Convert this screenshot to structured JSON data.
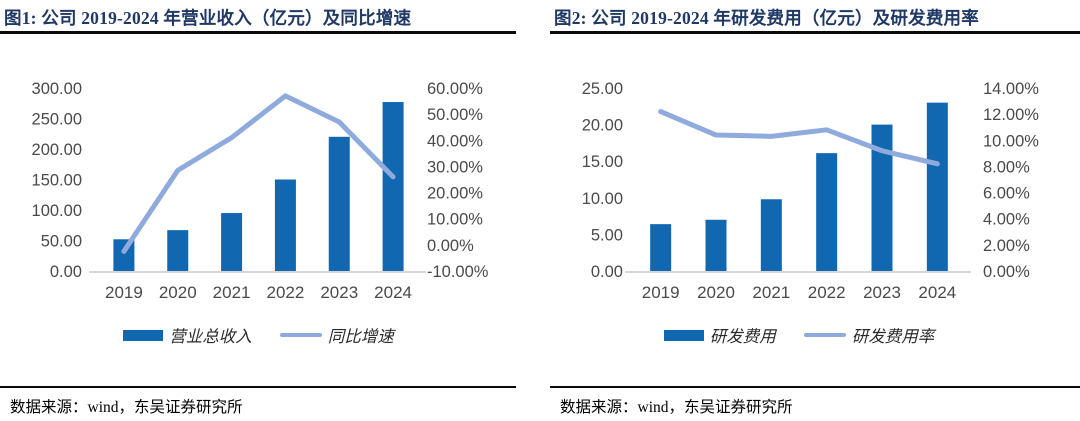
{
  "colors": {
    "bar": "#1168B1",
    "line": "#8FAADC",
    "title": "#1F3864",
    "axis_text": "#4A4A4A",
    "baseline": "#D6D6D6",
    "rule": "#0A0A0A"
  },
  "panels": [
    {
      "title": "图1:  公司 2019-2024 年营业收入（亿元）及同比增速",
      "legend": [
        {
          "type": "bar",
          "label": "营业总收入"
        },
        {
          "type": "line",
          "label": "同比增速"
        }
      ],
      "source": "数据来源：wind，东吴证券研究所"
    },
    {
      "title": "图2:  公司 2019-2024 年研发费用（亿元）及研发费用率",
      "legend": [
        {
          "type": "bar",
          "label": "研发费用"
        },
        {
          "type": "line",
          "label": "研发费用率"
        }
      ],
      "source": "数据来源：wind，东吴证券研究所"
    }
  ],
  "chart_data": [
    {
      "type": "bar",
      "subtype": "bar+line combo",
      "title": "公司 2019-2024 年营业收入（亿元）及同比增速",
      "categories": [
        "2019",
        "2020",
        "2021",
        "2022",
        "2023",
        "2024"
      ],
      "series": [
        {
          "name": "营业总收入",
          "type": "bar",
          "axis": "left",
          "values": [
            52,
            67,
            95,
            150,
            220,
            277
          ]
        },
        {
          "name": "同比增速",
          "type": "line",
          "axis": "right",
          "values": [
            -2.5,
            28.5,
            41.0,
            57.0,
            47.0,
            26.0
          ]
        }
      ],
      "left_axis": {
        "min": 0,
        "max": 300,
        "ticks": [
          "300.00",
          "250.00",
          "200.00",
          "150.00",
          "100.00",
          "50.00",
          "0.00"
        ]
      },
      "right_axis": {
        "min": -10,
        "max": 60,
        "ticks": [
          "60.00%",
          "50.00%",
          "40.00%",
          "30.00%",
          "20.00%",
          "10.00%",
          "0.00%",
          "-10.00%"
        ]
      },
      "grid": false,
      "legend_position": "bottom"
    },
    {
      "type": "bar",
      "subtype": "bar+line combo",
      "title": "公司 2019-2024 年研发费用（亿元）及研发费用率",
      "categories": [
        "2019",
        "2020",
        "2021",
        "2022",
        "2023",
        "2024"
      ],
      "series": [
        {
          "name": "研发费用",
          "type": "bar",
          "axis": "left",
          "values": [
            6.4,
            7.0,
            9.8,
            16.1,
            20.0,
            23.0
          ]
        },
        {
          "name": "研发费用率",
          "type": "line",
          "axis": "right",
          "values": [
            12.2,
            10.4,
            10.3,
            10.8,
            9.2,
            8.2
          ]
        }
      ],
      "left_axis": {
        "min": 0,
        "max": 25,
        "ticks": [
          "25.00",
          "20.00",
          "15.00",
          "10.00",
          "5.00",
          "0.00"
        ]
      },
      "right_axis": {
        "min": 0,
        "max": 14,
        "ticks": [
          "14.00%",
          "12.00%",
          "10.00%",
          "8.00%",
          "6.00%",
          "4.00%",
          "2.00%",
          "0.00%"
        ]
      },
      "grid": false,
      "legend_position": "bottom"
    }
  ]
}
